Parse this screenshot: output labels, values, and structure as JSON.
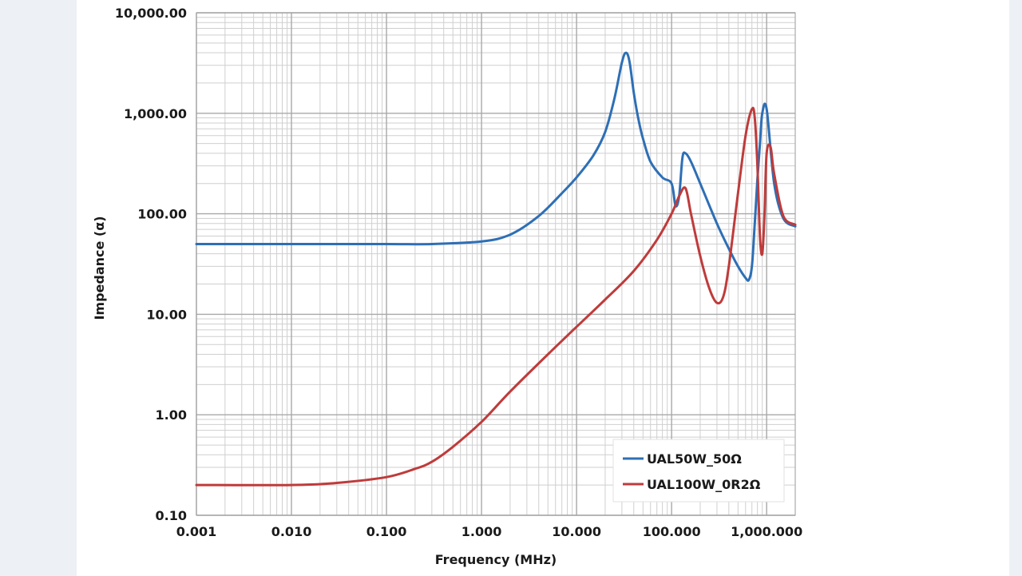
{
  "chart_data": {
    "type": "line",
    "xlabel": "Frequency (MHz)",
    "ylabel": "Impedance (α)",
    "x_scale": "log",
    "y_scale": "log",
    "xlim": [
      0.001,
      2000
    ],
    "ylim": [
      0.1,
      10000
    ],
    "grid": true,
    "legend_position": "bottom-right",
    "x_ticks": [
      {
        "value": 0.001,
        "label": "0.001"
      },
      {
        "value": 0.01,
        "label": "0.010"
      },
      {
        "value": 0.1,
        "label": "0.100"
      },
      {
        "value": 1,
        "label": "1.000"
      },
      {
        "value": 10,
        "label": "10.000"
      },
      {
        "value": 100,
        "label": "100.000"
      },
      {
        "value": 1000,
        "label": "1,000.000"
      }
    ],
    "y_ticks": [
      {
        "value": 0.1,
        "label": "0.10"
      },
      {
        "value": 1,
        "label": "1.00"
      },
      {
        "value": 10,
        "label": "10.00"
      },
      {
        "value": 100,
        "label": "100.00"
      },
      {
        "value": 1000,
        "label": "1,000.00"
      },
      {
        "value": 10000,
        "label": "10,000.00"
      }
    ],
    "series": [
      {
        "name": "UAL50W_50Ω",
        "color": "#2e6fb5",
        "x": [
          0.001,
          0.01,
          0.1,
          0.3,
          1,
          2,
          4,
          7,
          10,
          15,
          20,
          25,
          30,
          33,
          36,
          40,
          45,
          50,
          60,
          80,
          100,
          110,
          120,
          130,
          140,
          160,
          200,
          300,
          400,
          500,
          600,
          650,
          700,
          750,
          800,
          850,
          900,
          1000,
          1200,
          1500,
          2000
        ],
        "y": [
          50,
          50,
          50,
          50,
          53,
          62,
          95,
          160,
          230,
          380,
          650,
          1400,
          3200,
          4000,
          3300,
          1600,
          850,
          560,
          330,
          230,
          200,
          120,
          150,
          360,
          400,
          330,
          200,
          80,
          45,
          30,
          23,
          22,
          30,
          80,
          220,
          500,
          1000,
          1100,
          200,
          90,
          75
        ]
      },
      {
        "name": "UAL100W_0R2Ω",
        "color": "#bf3b3b",
        "x": [
          0.001,
          0.01,
          0.03,
          0.1,
          0.2,
          0.3,
          0.5,
          1,
          2,
          5,
          10,
          20,
          40,
          70,
          100,
          120,
          140,
          160,
          200,
          250,
          300,
          350,
          400,
          500,
          600,
          700,
          750,
          800,
          850,
          900,
          950,
          1000,
          1100,
          1200,
          1500,
          2000
        ],
        "y": [
          0.2,
          0.2,
          0.21,
          0.24,
          0.29,
          0.34,
          0.48,
          0.85,
          1.7,
          4,
          7.5,
          14,
          27,
          55,
          100,
          150,
          180,
          100,
          38,
          18,
          13,
          15,
          30,
          160,
          600,
          1100,
          900,
          300,
          60,
          40,
          100,
          400,
          460,
          250,
          95,
          78
        ]
      }
    ]
  }
}
